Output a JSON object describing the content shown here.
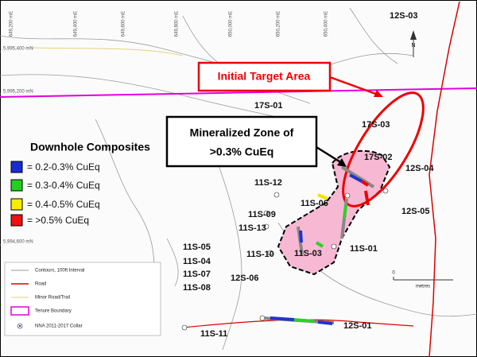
{
  "map": {
    "grid_labels_x": [
      "649,200 mE",
      "649,400 mE",
      "649,600 mE",
      "649,800 mE",
      "650,000 mE",
      "650,200 mE",
      "650,400 mE"
    ],
    "grid_labels_y": [
      "5,995,400 mN",
      "5,995,200 mN",
      "5,994,600 mN"
    ],
    "callouts": {
      "target": "Initial Target Area",
      "zone_line1": "Mineralized  Zone of",
      "zone_line2": ">0.3% CuEq"
    },
    "composites_legend": {
      "title": "Downhole Composites",
      "items": [
        "= 0.2-0.3% CuEq",
        "= 0.3-0.4% CuEq",
        "= 0.4-0.5% CuEq",
        "= >0.5% CuEq"
      ]
    },
    "drill_holes": [
      "12S-03",
      "17S-01",
      "17S-03",
      "17S-02",
      "12S-04",
      "11S-12",
      "11S-06",
      "12S-05",
      "11S-09",
      "11S-13",
      "11S-05",
      "11S-04",
      "11S-07",
      "11S-08",
      "11S-10",
      "11S-03",
      "11S-01",
      "12S-06",
      "12S-01",
      "11S-11"
    ],
    "map_legend": [
      "Contours, 100ft Interval",
      "Road",
      "Minor Road/Trail",
      "Tenure Boundary",
      "NNA 2011-2017 Collar"
    ],
    "scale": {
      "zero": "0",
      "unit": "metres"
    },
    "north": "N"
  }
}
